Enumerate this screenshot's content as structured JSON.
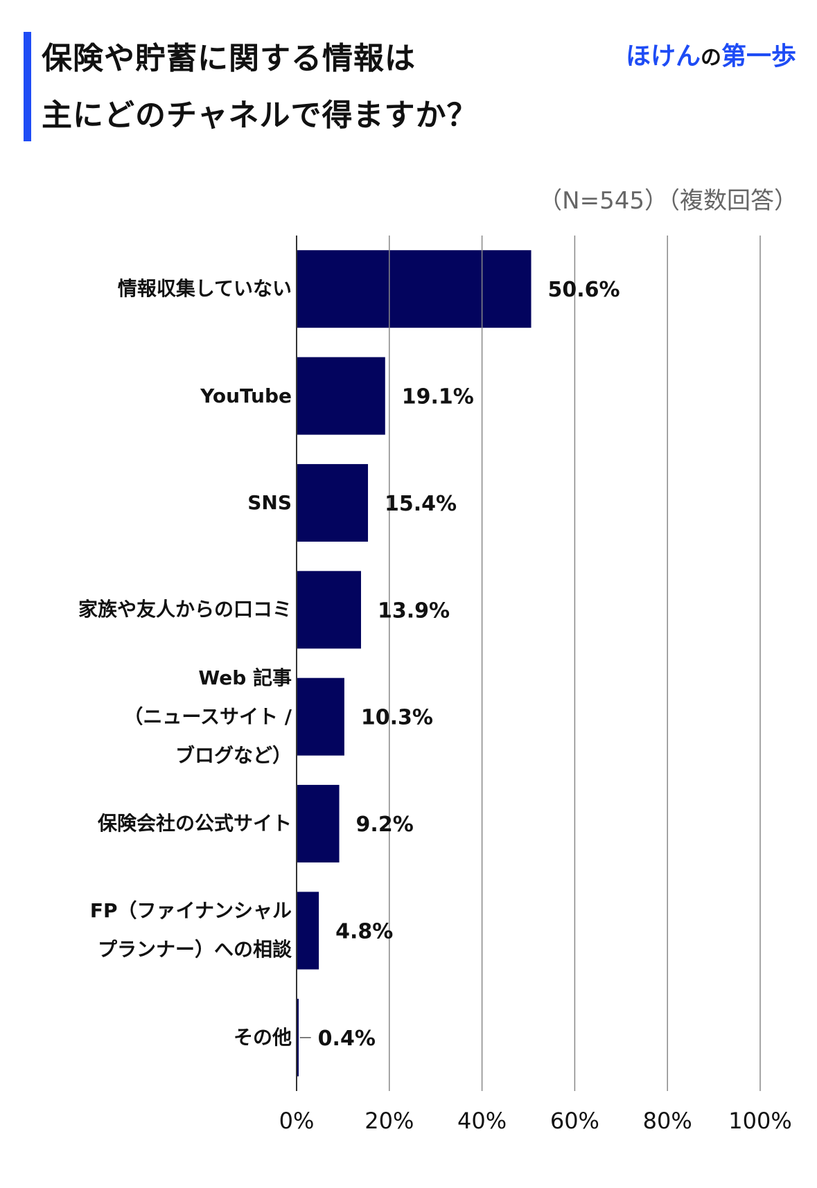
{
  "header": {
    "title_line1": "保険や貯蓄に関する情報は",
    "title_line2": "主にどのチャネルで得ますか？",
    "brand_part1": "ほけん",
    "brand_part2": "の",
    "brand_part3": "第一歩",
    "note": "（N=545）（複数回答）"
  },
  "colors": {
    "accent": "#1e4cf5",
    "bar": "#03045e",
    "grid": "#888888",
    "axis": "#333333"
  },
  "chart_data": {
    "type": "bar",
    "orientation": "horizontal",
    "categories": [
      [
        "情報収集していない"
      ],
      [
        "YouTube"
      ],
      [
        "SNS"
      ],
      [
        "家族や友人からの口コミ"
      ],
      [
        "Web 記事",
        "（ニュースサイト /",
        "ブログなど）"
      ],
      [
        "保険会社の公式サイト"
      ],
      [
        "FP（ファイナンシャル",
        "プランナー）への相談"
      ],
      [
        "その他"
      ]
    ],
    "values": [
      50.6,
      19.1,
      15.4,
      13.9,
      10.3,
      9.2,
      4.8,
      0.4
    ],
    "value_labels": [
      "50.6%",
      "19.1%",
      "15.4%",
      "13.9%",
      "10.3%",
      "9.2%",
      "4.8%",
      "0.4%"
    ],
    "xlim": [
      0,
      100
    ],
    "ticks": [
      0,
      20,
      40,
      60,
      80,
      100
    ],
    "tick_labels": [
      "0%",
      "20%",
      "40%",
      "60%",
      "80%",
      "100%"
    ],
    "grid": true
  }
}
